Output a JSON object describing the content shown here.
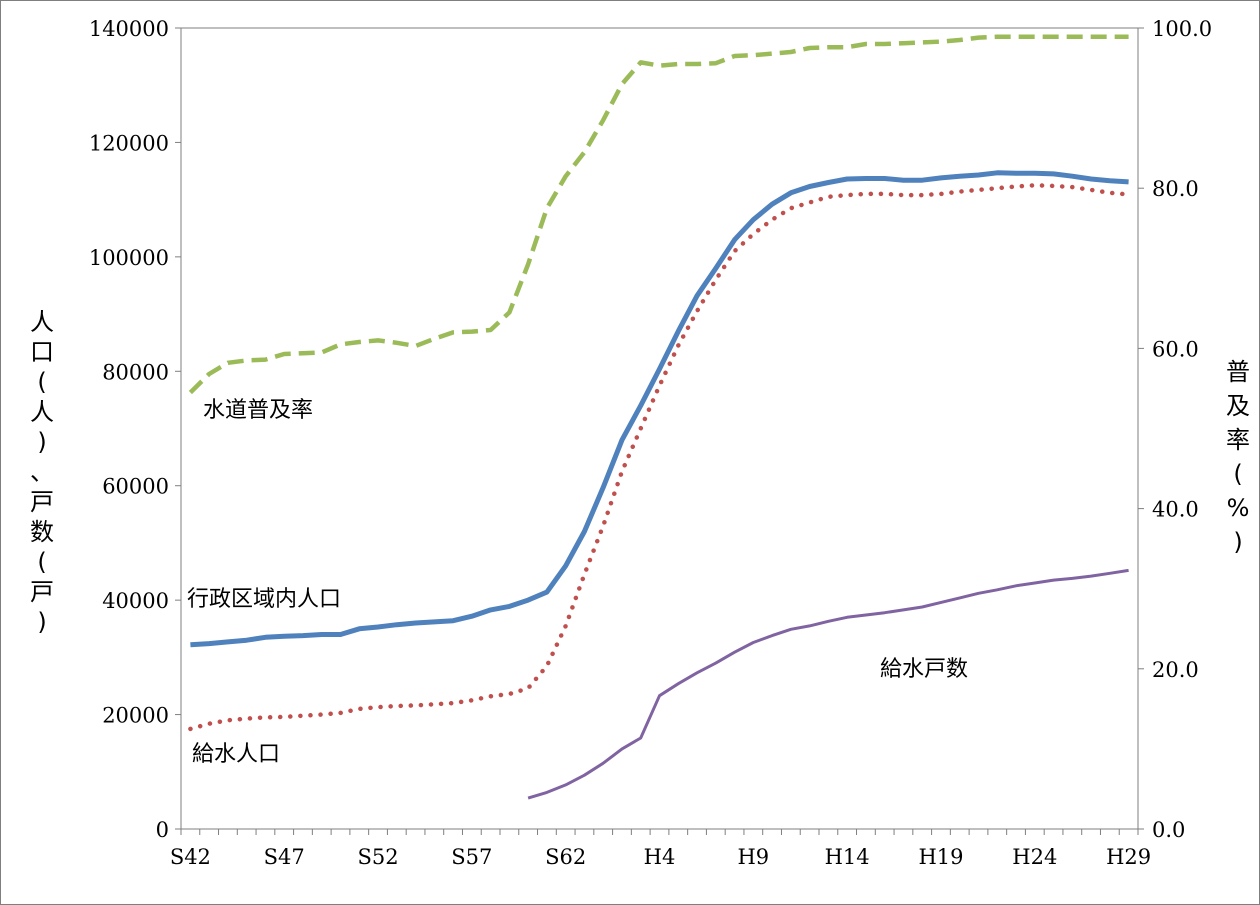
{
  "chart_data": {
    "type": "line",
    "x_tick_labels": [
      "S42",
      "S47",
      "S52",
      "S57",
      "S62",
      "H4",
      "H9",
      "H14",
      "H19",
      "H24",
      "H29"
    ],
    "y_left": {
      "label": "人口(人)、戸数(戸)",
      "ylim": [
        0,
        140000
      ],
      "ticks": [
        "0",
        "20000",
        "40000",
        "60000",
        "80000",
        "100000",
        "120000",
        "140000"
      ]
    },
    "y_right": {
      "label": "普及率(%)",
      "ylim": [
        0,
        100
      ],
      "ticks": [
        "0.0",
        "20.0",
        "40.0",
        "60.0",
        "80.0",
        "100.0"
      ]
    },
    "grid": false,
    "legend": "none",
    "series": [
      {
        "name": "水道普及率",
        "axis": "right",
        "style": "dashed",
        "color": "#9bbb59",
        "start_index": 0,
        "values": [
          54.5,
          56.8,
          58.2,
          58.5,
          58.6,
          59.3,
          59.4,
          59.5,
          60.5,
          60.8,
          61.0,
          60.7,
          60.3,
          61.2,
          62.0,
          62.1,
          62.3,
          64.5,
          70.5,
          77.5,
          81.5,
          84.5,
          88.5,
          93.0,
          95.7,
          95.3,
          95.5,
          95.5,
          95.6,
          96.5,
          96.6,
          96.8,
          97.0,
          97.5,
          97.6,
          97.6,
          98.0,
          98.0,
          98.1,
          98.2,
          98.3,
          98.5,
          98.8,
          98.9,
          98.9,
          98.9,
          98.9,
          98.9,
          98.9,
          98.9,
          98.9
        ]
      },
      {
        "name": "行政区域内人口",
        "axis": "left",
        "style": "solid",
        "color": "#4f81bd",
        "start_index": 0,
        "values": [
          32200,
          32400,
          32700,
          33000,
          33500,
          33700,
          33800,
          34000,
          34000,
          35000,
          35300,
          35700,
          36000,
          36200,
          36400,
          37200,
          38300,
          38900,
          40000,
          41400,
          46000,
          52000,
          59700,
          68000,
          74000,
          80400,
          87000,
          93200,
          98000,
          103000,
          106500,
          109200,
          111200,
          112300,
          113000,
          113600,
          113700,
          113700,
          113400,
          113400,
          113800,
          114100,
          114300,
          114700,
          114600,
          114600,
          114500,
          114100,
          113600,
          113300,
          113100
        ]
      },
      {
        "name": "給水人口",
        "axis": "left",
        "style": "dotted",
        "color": "#c0504d",
        "start_index": 0,
        "values": [
          17500,
          18400,
          19000,
          19300,
          19500,
          19600,
          19800,
          20000,
          20300,
          21000,
          21300,
          21500,
          21600,
          21800,
          22000,
          22500,
          23200,
          23600,
          24600,
          28500,
          35500,
          44500,
          53000,
          62500,
          70000,
          77500,
          84500,
          90500,
          96000,
          101000,
          104000,
          106500,
          108500,
          109500,
          110500,
          110800,
          111000,
          111000,
          110800,
          110800,
          111000,
          111400,
          111700,
          112000,
          112300,
          112500,
          112400,
          112200,
          111700,
          111200,
          110900
        ]
      },
      {
        "name": "給水戸数",
        "axis": "left",
        "style": "solid",
        "color": "#8064a2",
        "start_index": 18,
        "values": [
          5400,
          6400,
          7700,
          9400,
          11500,
          14000,
          15900,
          23300,
          25400,
          27300,
          29000,
          30900,
          32600,
          33800,
          34900,
          35500,
          36300,
          37000,
          37400,
          37800,
          38300,
          38800,
          39600,
          40400,
          41200,
          41800,
          42500,
          43000,
          43500,
          43800,
          44200,
          44700,
          45200
        ]
      }
    ]
  },
  "annotations": {
    "water_rate": "水道普及率",
    "admin_population": "行政区域内人口",
    "served_population": "給水人口",
    "served_households": "給水戸数"
  }
}
